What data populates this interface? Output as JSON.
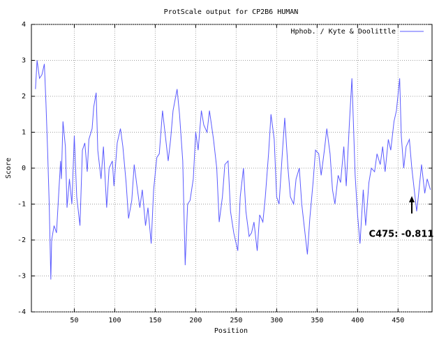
{
  "chart_data": {
    "type": "line",
    "title": "ProtScale output for CP2B6 HUMAN",
    "x_label": "Position",
    "y_label": "Score",
    "x": [
      2,
      4,
      7,
      10,
      13,
      15,
      17,
      19,
      21,
      22,
      25,
      28,
      30,
      33,
      34,
      36,
      39,
      41,
      44,
      47,
      50,
      53,
      57,
      60,
      63,
      66,
      68,
      72,
      74,
      77,
      79,
      83,
      86,
      90,
      93,
      97,
      99,
      103,
      107,
      110,
      114,
      117,
      121,
      124,
      128,
      131,
      134,
      138,
      141,
      145,
      148,
      152,
      155,
      159,
      162,
      166,
      169,
      172,
      177,
      180,
      184,
      187,
      190,
      193,
      197,
      200,
      203,
      207,
      210,
      214,
      217,
      222,
      226,
      229,
      233,
      236,
      240,
      243,
      247,
      252,
      255,
      259,
      262,
      266,
      269,
      272,
      276,
      279,
      283,
      286,
      290,
      293,
      297,
      300,
      303,
      307,
      310,
      314,
      317,
      321,
      324,
      328,
      331,
      334,
      338,
      341,
      345,
      348,
      352,
      355,
      359,
      362,
      366,
      369,
      372,
      376,
      379,
      383,
      386,
      390,
      393,
      397,
      400,
      403,
      407,
      410,
      414,
      417,
      421,
      424,
      428,
      431,
      434,
      438,
      441,
      445,
      448,
      452,
      454,
      457,
      460,
      464,
      467,
      471,
      473,
      475,
      479,
      483,
      486,
      490
    ],
    "series": [
      {
        "name": "Hphob. / Kyte & Doolittle",
        "color": "#5a5aff",
        "values": [
          2.2,
          3.0,
          2.5,
          2.6,
          2.9,
          1.8,
          0.5,
          -1.0,
          -3.1,
          -2.0,
          -1.6,
          -1.8,
          -1.0,
          0.2,
          -0.3,
          1.3,
          0.6,
          -1.1,
          -0.3,
          -1.0,
          0.9,
          -0.8,
          -1.6,
          0.5,
          0.7,
          -0.1,
          0.8,
          1.1,
          1.7,
          2.1,
          0.5,
          -0.3,
          0.6,
          -1.1,
          0.0,
          0.2,
          -0.5,
          0.7,
          1.1,
          0.6,
          -0.4,
          -1.4,
          -0.9,
          0.1,
          -0.6,
          -1.1,
          -0.6,
          -1.6,
          -1.1,
          -2.1,
          -0.6,
          0.3,
          0.4,
          1.6,
          1.0,
          0.2,
          0.8,
          1.6,
          2.2,
          1.5,
          0.2,
          -2.7,
          -1.0,
          -0.9,
          -0.3,
          1.0,
          0.5,
          1.6,
          1.2,
          1.0,
          1.6,
          0.8,
          0.0,
          -1.5,
          -0.8,
          0.1,
          0.2,
          -1.2,
          -1.8,
          -2.3,
          -0.8,
          0.0,
          -1.2,
          -1.9,
          -1.8,
          -1.5,
          -2.3,
          -1.3,
          -1.5,
          -0.8,
          0.4,
          1.5,
          0.8,
          -0.8,
          -1.0,
          0.4,
          1.4,
          0.0,
          -0.8,
          -1.0,
          -0.3,
          0.0,
          -1.0,
          -1.6,
          -2.4,
          -1.4,
          -0.4,
          0.5,
          0.4,
          -0.2,
          0.5,
          1.1,
          0.4,
          -0.6,
          -1.0,
          -0.2,
          -0.4,
          0.6,
          -0.5,
          1.3,
          2.5,
          -0.2,
          -1.3,
          -2.1,
          -0.6,
          -1.6,
          -0.4,
          0.0,
          -0.1,
          0.4,
          0.1,
          0.6,
          -0.1,
          0.8,
          0.5,
          1.3,
          1.6,
          2.5,
          0.9,
          0.0,
          0.6,
          0.8,
          0.0,
          -0.8,
          -1.2,
          -0.811,
          0.1,
          -0.7,
          -0.3,
          -0.6
        ]
      }
    ],
    "xlim": [
      -3,
      492
    ],
    "xticks": [
      50,
      100,
      150,
      200,
      250,
      300,
      350,
      400,
      450
    ],
    "ylim": [
      -4,
      4
    ],
    "yticks": [
      -4,
      -3,
      -2,
      -1,
      0,
      1,
      2,
      3,
      4
    ],
    "grid": true,
    "legend": "top right",
    "annotation": "C475: -0.811"
  }
}
